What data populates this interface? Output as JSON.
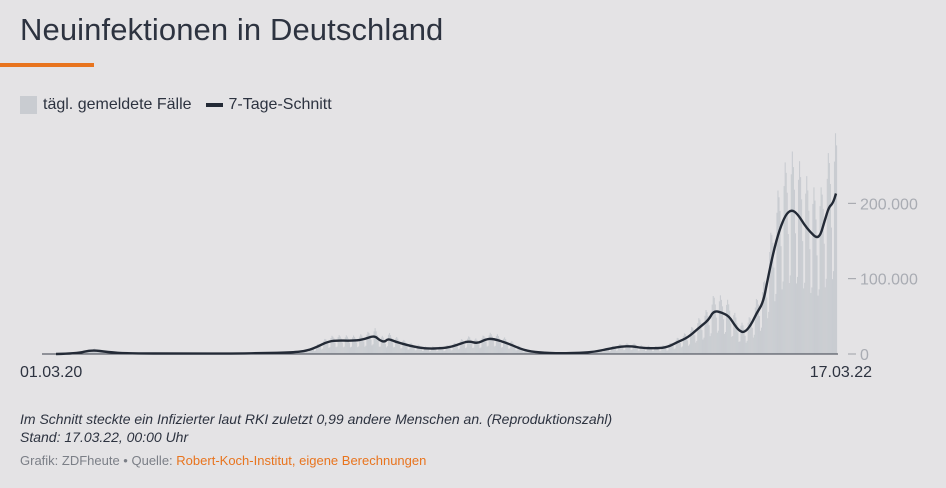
{
  "header": {
    "title": "Neuinfektionen in Deutschland"
  },
  "legend": {
    "bars_label": "tägl. gemeldete Fälle",
    "line_label": "7-Tage-Schnitt"
  },
  "colors": {
    "accent": "#e8741e",
    "bars": "#c9ccd1",
    "line": "#232a36",
    "tick_text": "#a9acb3"
  },
  "chart_data": {
    "type": "bar",
    "title": "Neuinfektionen in Deutschland",
    "xlabel": "",
    "ylabel": "",
    "x_start": "01.03.20",
    "x_end": "17.03.22",
    "ylim": [
      0,
      300000
    ],
    "y_ticks": [
      0,
      100000,
      200000
    ],
    "y_tick_labels": [
      "0",
      "100.000",
      "200.000"
    ],
    "grid": false,
    "series": [
      {
        "name": "7-Tage-Schnitt",
        "type": "line",
        "points": [
          {
            "x": 0,
            "y": 0
          },
          {
            "x": 20,
            "y": 500
          },
          {
            "x": 35,
            "y": 5500
          },
          {
            "x": 50,
            "y": 2500
          },
          {
            "x": 70,
            "y": 800
          },
          {
            "x": 120,
            "y": 500
          },
          {
            "x": 180,
            "y": 600
          },
          {
            "x": 200,
            "y": 1200
          },
          {
            "x": 230,
            "y": 2000
          },
          {
            "x": 245,
            "y": 4500
          },
          {
            "x": 255,
            "y": 10000
          },
          {
            "x": 262,
            "y": 15000
          },
          {
            "x": 270,
            "y": 18000
          },
          {
            "x": 290,
            "y": 17500
          },
          {
            "x": 300,
            "y": 19500
          },
          {
            "x": 310,
            "y": 24500
          },
          {
            "x": 315,
            "y": 18000
          },
          {
            "x": 320,
            "y": 16000
          },
          {
            "x": 323,
            "y": 20500
          },
          {
            "x": 330,
            "y": 16500
          },
          {
            "x": 345,
            "y": 10500
          },
          {
            "x": 360,
            "y": 7000
          },
          {
            "x": 375,
            "y": 7500
          },
          {
            "x": 385,
            "y": 9500
          },
          {
            "x": 395,
            "y": 14500
          },
          {
            "x": 402,
            "y": 17000
          },
          {
            "x": 410,
            "y": 14000
          },
          {
            "x": 418,
            "y": 19500
          },
          {
            "x": 425,
            "y": 20500
          },
          {
            "x": 440,
            "y": 14000
          },
          {
            "x": 455,
            "y": 5000
          },
          {
            "x": 470,
            "y": 2000
          },
          {
            "x": 490,
            "y": 800
          },
          {
            "x": 510,
            "y": 1500
          },
          {
            "x": 525,
            "y": 3000
          },
          {
            "x": 540,
            "y": 7500
          },
          {
            "x": 550,
            "y": 10000
          },
          {
            "x": 560,
            "y": 10500
          },
          {
            "x": 570,
            "y": 8000
          },
          {
            "x": 585,
            "y": 7500
          },
          {
            "x": 595,
            "y": 9000
          },
          {
            "x": 605,
            "y": 16000
          },
          {
            "x": 615,
            "y": 22000
          },
          {
            "x": 625,
            "y": 34000
          },
          {
            "x": 635,
            "y": 45000
          },
          {
            "x": 640,
            "y": 57500
          },
          {
            "x": 648,
            "y": 55000
          },
          {
            "x": 655,
            "y": 50000
          },
          {
            "x": 660,
            "y": 39000
          },
          {
            "x": 665,
            "y": 30500
          },
          {
            "x": 670,
            "y": 28500
          },
          {
            "x": 676,
            "y": 38000
          },
          {
            "x": 682,
            "y": 55000
          },
          {
            "x": 688,
            "y": 68000
          },
          {
            "x": 692,
            "y": 95000
          },
          {
            "x": 698,
            "y": 135000
          },
          {
            "x": 704,
            "y": 165000
          },
          {
            "x": 710,
            "y": 185000
          },
          {
            "x": 716,
            "y": 192000
          },
          {
            "x": 722,
            "y": 185000
          },
          {
            "x": 728,
            "y": 172000
          },
          {
            "x": 734,
            "y": 162000
          },
          {
            "x": 740,
            "y": 154000
          },
          {
            "x": 744,
            "y": 158000
          },
          {
            "x": 748,
            "y": 177000
          },
          {
            "x": 752,
            "y": 195000
          },
          {
            "x": 756,
            "y": 200000
          },
          {
            "x": 759,
            "y": 213000
          }
        ]
      },
      {
        "name": "tägl. gemeldete Fälle",
        "type": "bar",
        "note": "daily values oscillate around the 7-day average with a weekly pattern",
        "peak_value": 293000,
        "peak_day": 758
      }
    ]
  },
  "footer": {
    "note": "Im Schnitt steckte ein Infizierter laut RKI zuletzt 0,99 andere Menschen an. (Reproduktionszahl)",
    "stand": "Stand: 17.03.22, 00:00 Uhr",
    "credit_prefix": "Grafik: ZDFheute • Quelle:",
    "credit_source": "Robert-Koch-Institut, eigene Berechnungen"
  }
}
